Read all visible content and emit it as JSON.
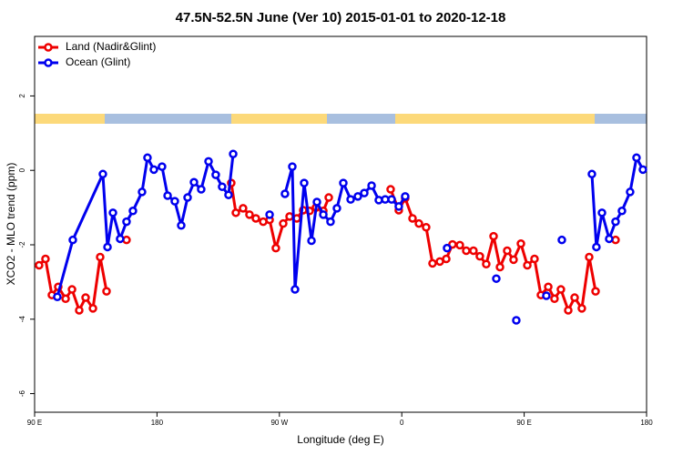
{
  "chart_data": {
    "type": "line",
    "title": "47.5N-52.5N June (Ver 10)   2015-01-01 to 2020-12-18",
    "x_label": "Longitude (deg E)",
    "y_label": "XCO2 - MLO trend (ppm)",
    "xlim": [
      90,
      540
    ],
    "ylim": [
      -6.5,
      3.6
    ],
    "xticks": [
      {
        "value": 90,
        "label": "90 E"
      },
      180,
      {
        "value": 270,
        "label": "90 W"
      },
      {
        "value": 360,
        "label": "0"
      },
      {
        "value": 450,
        "label": "90 E"
      },
      {
        "value": 540,
        "label": "180"
      }
    ],
    "yticks": [
      -6,
      -4,
      -2,
      0,
      2
    ],
    "legend": "top-left",
    "series": [
      {
        "name": "Land (Nadir&Glint)",
        "color": "#ee0000",
        "x": [
          93.3,
          98.0,
          102.7,
          107.4,
          112.8,
          117.5,
          122.8,
          127.5,
          132.9,
          138.2,
          142.9,
          null,
          157.6,
          null,
          234.6,
          238.0,
          243.3,
          248.0,
          252.7,
          258.1,
          262.8,
          267.4,
          272.8,
          277.5,
          282.8,
          287.5,
          292.2,
          296.9,
          302.3,
          306.3,
          null,
          351.8,
          357.8,
          362.5,
          367.9,
          372.6,
          377.9,
          382.6,
          388.0,
          392.7,
          397.3,
          402.7,
          407.4,
          412.7,
          417.4,
          422.1,
          427.5,
          432.2,
          437.5,
          442.2,
          447.6,
          452.3,
          457.6,
          462.3,
          467.7,
          472.3,
          477.0,
          482.4,
          487.1,
          492.4,
          497.8,
          502.5,
          null,
          517.2
        ],
        "values": [
          -2.55,
          -2.38,
          -3.35,
          -3.13,
          -3.45,
          -3.2,
          -3.76,
          -3.42,
          -3.71,
          -2.33,
          -3.25,
          null,
          -1.87,
          null,
          -0.34,
          -1.14,
          -1.02,
          -1.19,
          -1.29,
          -1.38,
          -1.33,
          -2.09,
          -1.43,
          -1.24,
          -1.29,
          -1.07,
          -1.09,
          -1.0,
          -1.09,
          -0.73,
          null,
          -0.51,
          -1.07,
          -0.75,
          -1.29,
          -1.43,
          -1.53,
          -2.5,
          -2.45,
          -2.38,
          -1.99,
          -2.01,
          -2.16,
          -2.16,
          -2.31,
          -2.52,
          -1.77,
          -2.6,
          -2.16,
          -2.4,
          -1.97,
          -2.55,
          -2.38,
          -3.35,
          -3.13,
          -3.45,
          -3.2,
          -3.76,
          -3.42,
          -3.71,
          -2.33,
          -3.25,
          null,
          -1.87
        ]
      },
      {
        "name": "Ocean (Glint)",
        "color": "#0000ee",
        "x": [
          106.7,
          118.1,
          140.2,
          143.6,
          147.6,
          152.9,
          157.6,
          162.3,
          169.0,
          173.0,
          177.7,
          183.7,
          187.8,
          193.1,
          197.8,
          202.5,
          207.2,
          212.5,
          217.9,
          223.2,
          227.9,
          232.6,
          236.0,
          null,
          262.8,
          null,
          274.1,
          279.5,
          281.5,
          288.2,
          293.6,
          297.6,
          302.3,
          307.6,
          312.3,
          317.0,
          322.4,
          327.7,
          332.4,
          337.8,
          343.1,
          347.8,
          352.5,
          357.8,
          362.5,
          null,
          393.3,
          null,
          429.5,
          null,
          444.2,
          null,
          466.3,
          null,
          477.7,
          null,
          499.8,
          503.1,
          507.2,
          512.5,
          517.2,
          521.9,
          527.9,
          532.6,
          537.3
        ],
        "values": [
          -3.4,
          -1.87,
          -0.1,
          -2.06,
          -1.14,
          -1.84,
          -1.38,
          -1.09,
          -0.58,
          0.34,
          0.02,
          0.1,
          -0.68,
          -0.83,
          -1.48,
          -0.73,
          -0.32,
          -0.51,
          0.24,
          -0.12,
          -0.44,
          -0.66,
          0.44,
          null,
          -1.19,
          null,
          -0.63,
          0.1,
          -3.2,
          -0.34,
          -1.89,
          -0.85,
          -1.19,
          -1.38,
          -1.02,
          -0.34,
          -0.78,
          -0.7,
          -0.61,
          -0.41,
          -0.8,
          -0.78,
          -0.78,
          -0.97,
          -0.7,
          null,
          -2.09,
          null,
          -2.91,
          null,
          -4.03,
          null,
          -3.37,
          null,
          -1.87,
          null,
          -0.1,
          -2.06,
          -1.14,
          -1.84,
          -1.38,
          -1.09,
          -0.58,
          0.34,
          0.02
        ]
      }
    ]
  }
}
